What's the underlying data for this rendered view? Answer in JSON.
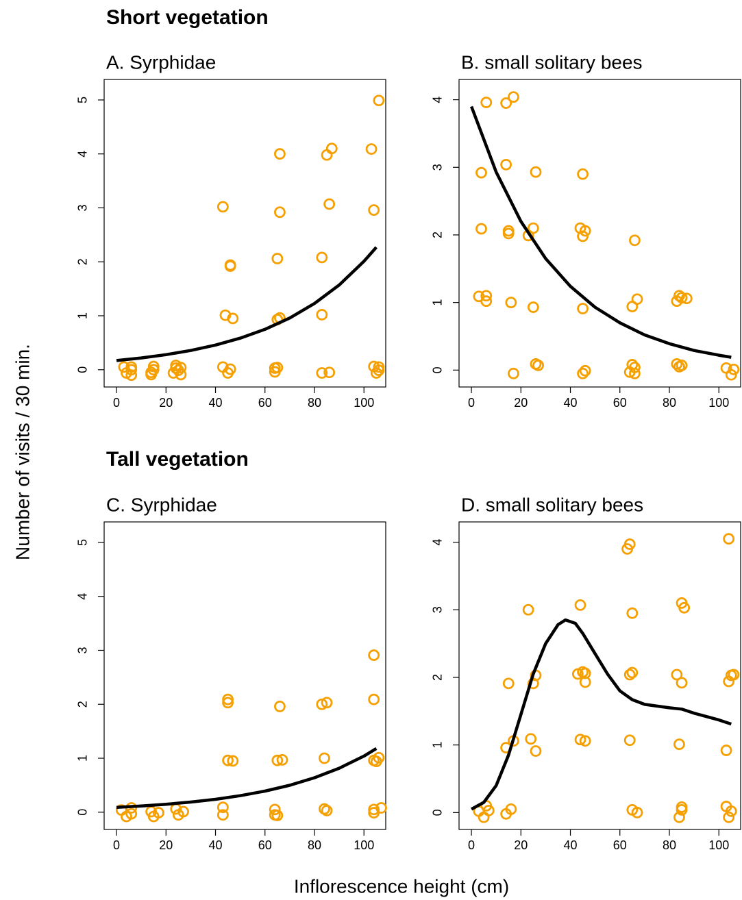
{
  "figure": {
    "section_titles": [
      "Short vegetation",
      "Tall vegetation"
    ],
    "ylabel": "Number of visits / 30 min.",
    "xlabel": "Inflorescence height (cm)"
  },
  "chart_data": [
    {
      "type": "scatter",
      "title": "A. Syrphidae",
      "xlim": [
        -5,
        108.8
      ],
      "ylim": [
        -0.32,
        5.38
      ],
      "xticks": [
        0,
        20,
        40,
        60,
        80,
        100
      ],
      "yticks": [
        0,
        1,
        2,
        3,
        4,
        5
      ],
      "series": [
        {
          "type": "scatter",
          "color": "#f5a000",
          "x": [
            3,
            4,
            6,
            6,
            6,
            14,
            15,
            15,
            14,
            23,
            24,
            24,
            25,
            26,
            26,
            43,
            46,
            46,
            44,
            47,
            43,
            45,
            46,
            66,
            66,
            65,
            65,
            66,
            64,
            64,
            65,
            87,
            85,
            86,
            83,
            83,
            83,
            86,
            103,
            106,
            104,
            104,
            105,
            106,
            106
          ],
          "values": [
            0.05,
            -0.06,
            -0.1,
            0,
            0.05,
            -0.05,
            0,
            0.06,
            -0.09,
            -0.06,
            0.03,
            0.08,
            -0.01,
            -0.09,
            0.04,
            3.02,
            1.92,
            1.94,
            1.01,
            0.95,
            0.05,
            -0.06,
            0.01,
            4.0,
            2.92,
            2.06,
            0.93,
            0.96,
            0.03,
            -0.04,
            0.04,
            4.1,
            3.98,
            3.07,
            2.08,
            1.02,
            -0.06,
            -0.05,
            4.09,
            4.99,
            2.96,
            0.06,
            -0.06,
            0.05,
            -0.01
          ]
        },
        {
          "type": "line",
          "color": "#000000",
          "x": [
            0,
            10,
            20,
            30,
            40,
            50,
            60,
            70,
            80,
            90,
            100,
            105
          ],
          "values": [
            0.17,
            0.218,
            0.279,
            0.357,
            0.457,
            0.585,
            0.749,
            0.958,
            1.227,
            1.57,
            2.01,
            2.27
          ]
        }
      ]
    },
    {
      "type": "scatter",
      "title": "B. small solitary bees",
      "xlim": [
        -5,
        108.8
      ],
      "ylim": [
        -0.25,
        4.3
      ],
      "xticks": [
        0,
        20,
        40,
        60,
        80,
        100
      ],
      "yticks": [
        0,
        1,
        2,
        3,
        4
      ],
      "series": [
        {
          "type": "scatter",
          "color": "#f5a000",
          "x": [
            4,
            6,
            14,
            17,
            14,
            4,
            15,
            15,
            23,
            25,
            26,
            45,
            44,
            45,
            46,
            66,
            3,
            6,
            6,
            16,
            25,
            45,
            65,
            67,
            83,
            84,
            85,
            87,
            17,
            26,
            27,
            45,
            46,
            64,
            65,
            66,
            66,
            83,
            84,
            85,
            103,
            105,
            106
          ],
          "values": [
            2.92,
            3.96,
            3.95,
            4.04,
            3.04,
            2.09,
            2.06,
            2.02,
            1.99,
            2.1,
            2.93,
            2.9,
            2.1,
            1.98,
            2.06,
            1.92,
            1.09,
            1.1,
            1.02,
            1.0,
            0.93,
            0.91,
            0.94,
            1.05,
            1.02,
            1.1,
            1.07,
            1.06,
            -0.05,
            0.09,
            0.07,
            -0.05,
            -0.01,
            -0.03,
            0.08,
            0.04,
            -0.05,
            0.09,
            0.05,
            0.07,
            0.03,
            -0.07,
            0.01
          ]
        },
        {
          "type": "line",
          "color": "#000000",
          "x": [
            0,
            10,
            20,
            30,
            40,
            50,
            60,
            70,
            80,
            90,
            100,
            105
          ],
          "values": [
            3.9,
            2.93,
            2.2,
            1.65,
            1.24,
            0.93,
            0.7,
            0.52,
            0.39,
            0.29,
            0.22,
            0.19
          ]
        }
      ]
    },
    {
      "type": "scatter",
      "title": "C. Syrphidae",
      "xlim": [
        -5,
        108.8
      ],
      "ylim": [
        -0.32,
        5.38
      ],
      "xticks": [
        0,
        20,
        40,
        60,
        80,
        100
      ],
      "yticks": [
        0,
        1,
        2,
        3,
        4,
        5
      ],
      "series": [
        {
          "type": "scatter",
          "color": "#f5a000",
          "x": [
            2,
            4,
            6,
            6,
            14,
            15,
            17,
            24,
            25,
            27,
            45,
            45,
            45,
            47,
            43,
            43,
            66,
            65,
            67,
            64,
            64,
            65,
            83,
            85,
            84,
            84,
            85,
            104,
            104,
            104,
            105,
            106,
            104,
            104,
            107
          ],
          "values": [
            0.04,
            -0.08,
            0.08,
            -0.03,
            0.01,
            -0.08,
            -0.01,
            0.06,
            -0.05,
            0.01,
            2.09,
            2.03,
            0.96,
            0.95,
            0.09,
            -0.05,
            1.96,
            0.96,
            0.97,
            0.05,
            -0.05,
            -0.06,
            2.0,
            2.03,
            1.0,
            0.06,
            0.03,
            2.91,
            2.09,
            0.96,
            0.94,
            1.01,
            0.05,
            -0.01,
            0.08
          ]
        },
        {
          "type": "line",
          "color": "#000000",
          "x": [
            0,
            10,
            20,
            30,
            40,
            50,
            60,
            70,
            80,
            90,
            100,
            105
          ],
          "values": [
            0.09,
            0.115,
            0.147,
            0.188,
            0.239,
            0.306,
            0.391,
            0.499,
            0.638,
            0.815,
            1.04,
            1.18
          ]
        }
      ]
    },
    {
      "type": "scatter",
      "title": "D. small solitary bees",
      "xlim": [
        -5,
        108.8
      ],
      "ylim": [
        -0.25,
        4.3
      ],
      "xticks": [
        0,
        20,
        40,
        60,
        80,
        100
      ],
      "yticks": [
        0,
        1,
        2,
        3,
        4
      ],
      "series": [
        {
          "type": "scatter",
          "color": "#f5a000",
          "x": [
            3,
            5,
            7,
            6,
            14,
            17,
            16,
            14,
            15,
            23,
            25,
            26,
            24,
            26,
            44,
            43,
            45,
            46,
            46,
            44,
            46,
            63,
            64,
            65,
            64,
            65,
            64,
            65,
            67,
            85,
            86,
            83,
            85,
            84,
            84,
            85,
            85,
            103,
            104,
            104,
            105,
            106,
            103,
            104,
            105
          ],
          "values": [
            0.02,
            -0.07,
            0.03,
            0.1,
            0.96,
            1.06,
            0.05,
            -0.02,
            1.91,
            3.0,
            1.91,
            2.03,
            1.09,
            0.91,
            3.07,
            2.05,
            2.08,
            1.93,
            2.06,
            1.08,
            1.06,
            3.9,
            3.97,
            2.95,
            2.04,
            2.07,
            1.07,
            0.04,
            0.0,
            3.1,
            3.03,
            2.04,
            1.92,
            1.01,
            -0.07,
            0.04,
            0.08,
            0.92,
            4.05,
            1.94,
            2.03,
            2.04,
            0.09,
            -0.07,
            0.02
          ]
        },
        {
          "type": "line",
          "color": "#000000",
          "x": [
            0,
            5,
            10,
            15,
            20,
            25,
            30,
            35,
            38,
            42,
            45,
            50,
            55,
            60,
            65,
            70,
            80,
            85,
            90,
            95,
            100,
            105
          ],
          "values": [
            0.05,
            0.15,
            0.4,
            0.85,
            1.45,
            2.05,
            2.5,
            2.78,
            2.85,
            2.8,
            2.65,
            2.35,
            2.05,
            1.8,
            1.67,
            1.6,
            1.55,
            1.53,
            1.47,
            1.42,
            1.37,
            1.31
          ]
        }
      ]
    }
  ]
}
